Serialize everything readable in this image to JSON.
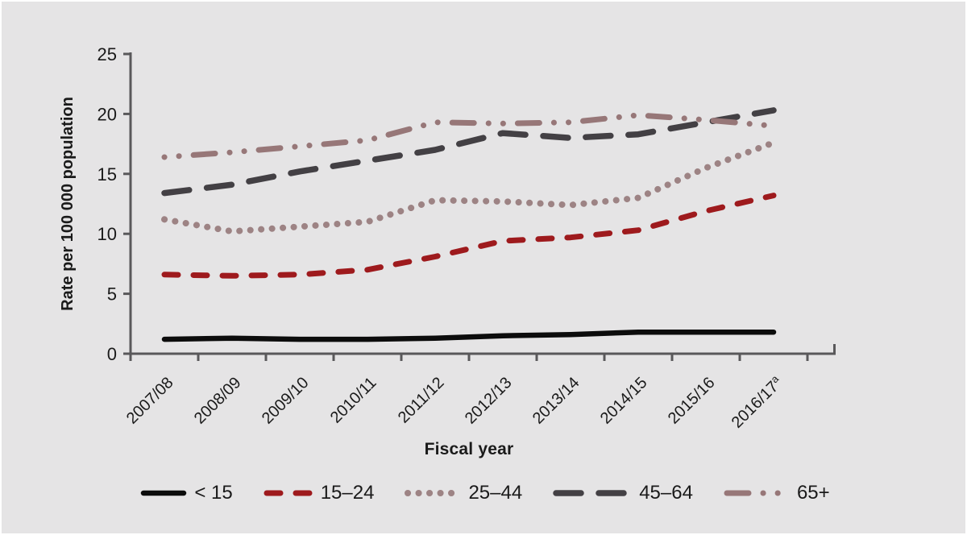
{
  "chart_data": {
    "type": "line",
    "title": "",
    "xlabel": "Fiscal year",
    "ylabel": "Rate per 100 000 population",
    "categories": [
      "2007/08",
      "2008/09",
      "2009/10",
      "2010/11",
      "2011/12",
      "2012/13",
      "2013/14",
      "2014/15",
      "2015/16",
      "2016/17"
    ],
    "category_footnote": {
      "category_index": 9,
      "marker": "a"
    },
    "ylim": [
      0,
      25
    ],
    "yticks": [
      0,
      5,
      10,
      15,
      20,
      25
    ],
    "grid": false,
    "legend_position": "bottom",
    "series": [
      {
        "name": "< 15",
        "values": [
          1.2,
          1.3,
          1.2,
          1.2,
          1.3,
          1.5,
          1.6,
          1.8,
          1.8,
          1.8
        ],
        "color": "#0c0c0c",
        "dash": "none",
        "width": 6.5,
        "dashoffset": 0,
        "sample_len": 50
      },
      {
        "name": "15–24",
        "values": [
          6.6,
          6.5,
          6.6,
          7.0,
          8.1,
          9.4,
          9.7,
          10.3,
          11.9,
          13.2
        ],
        "color": "#9e1a1d",
        "dash": "17 19",
        "width": 7,
        "dashoffset": 0,
        "sample_len": 54
      },
      {
        "name": "25–44",
        "values": [
          11.2,
          10.2,
          10.6,
          11.0,
          12.8,
          12.7,
          12.4,
          13.0,
          15.5,
          17.6
        ],
        "color": "#9d8384",
        "dash": "0.1 13.4",
        "width": 8,
        "dashoffset": 0,
        "sample_len": 62
      },
      {
        "name": "45–64",
        "values": [
          13.4,
          14.1,
          15.2,
          16.1,
          17.0,
          18.4,
          18.0,
          18.3,
          19.3,
          20.3
        ],
        "color": "#434044",
        "dash": "31 22",
        "width": 7.5,
        "dashoffset": 0,
        "sample_len": 90
      },
      {
        "name": "65+",
        "values": [
          16.4,
          16.8,
          17.3,
          17.8,
          19.3,
          19.2,
          19.3,
          19.9,
          19.5,
          19.0
        ],
        "color": "#977778",
        "dash": "27 18 0.1 18 0.1 18",
        "width": 7,
        "dashoffset": 45,
        "sample_len": 74
      }
    ]
  },
  "colors": {
    "background": "#e5e4e5",
    "axis": "#59585a",
    "text": "#1a1a1a"
  }
}
